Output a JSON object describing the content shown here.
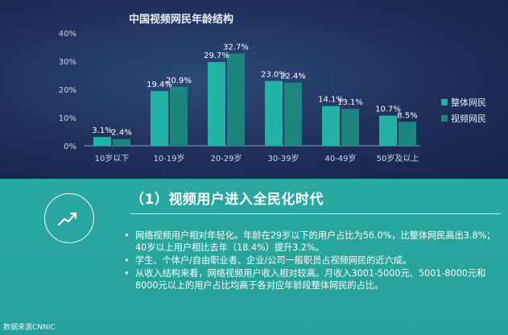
{
  "chart_data": {
    "type": "bar",
    "title": "中国视频网民年龄结构",
    "categories": [
      "10岁以下",
      "10-19岁",
      "20-29岁",
      "30-39岁",
      "40-49岁",
      "50岁及以上"
    ],
    "series": [
      {
        "name": "整体网民",
        "values": [
          3.1,
          19.4,
          29.7,
          23.0,
          14.1,
          10.7
        ],
        "labels": [
          "3.1%",
          "19.4%",
          "29.7%",
          "23.0%",
          "14.1%",
          "10.7%"
        ],
        "color": "#22b3a5"
      },
      {
        "name": "视频网民",
        "values": [
          2.4,
          20.9,
          32.7,
          22.4,
          13.1,
          8.5
        ],
        "labels": [
          "2.4%",
          "20.9%",
          "32.7%",
          "22.4%",
          "13.1%",
          "8.5%"
        ],
        "color": "#1c857e"
      }
    ],
    "yticks": [
      "0%",
      "10%",
      "20%",
      "30%",
      "40%"
    ],
    "ylim": [
      0,
      40
    ],
    "grid": false,
    "legend": "right"
  },
  "section": {
    "heading": "（1）视频用户进入全民化时代",
    "icon": "trend-chart-icon",
    "bullets": [
      "网络视频用户相对年轻化。年龄在29岁以下的用户占比为56.0%，比整体网民高出3.8%；40岁以上用户相比去年（18.4%）提升3.2%。",
      "学生、个体户/自由职业者、企业/公司一般职员占视频网民的近六成。",
      "从收入结构来看，网络视频用户收入相对较高。月收入3001-5000元、5001-8000元和8000元以上的用户占比均高于各对应年龄段整体网民的占比。"
    ]
  },
  "source": "数据来源CNNIC"
}
